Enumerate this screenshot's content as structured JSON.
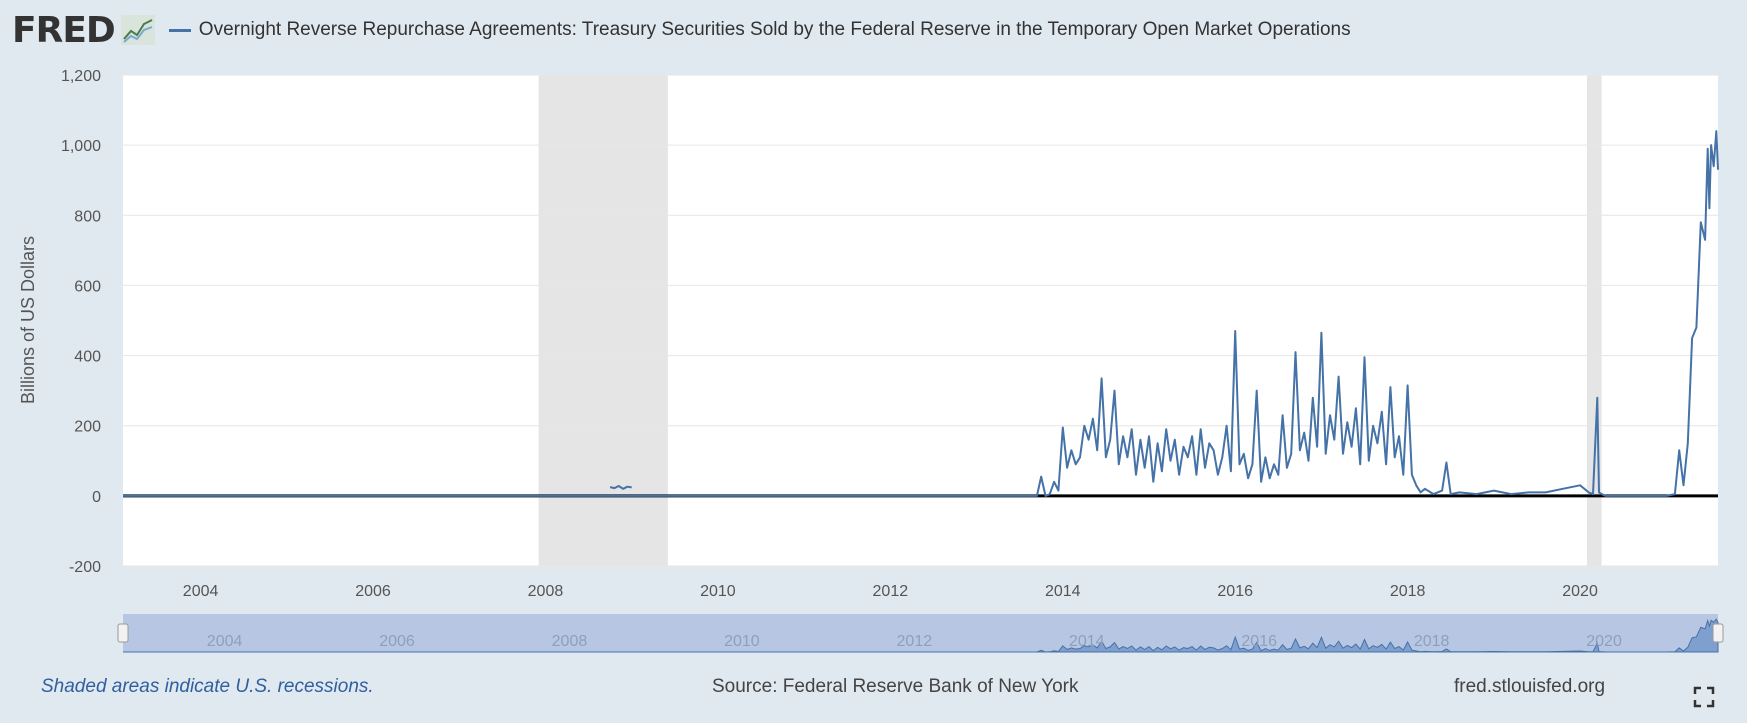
{
  "header": {
    "logo_text": "FRED",
    "series_title": "Overnight Reverse Repurchase Agreements: Treasury Securities Sold by the Federal Reserve in the Temporary Open Market Operations"
  },
  "footer": {
    "recession_note": "Shaded areas indicate U.S. recessions.",
    "source": "Source: Federal Reserve Bank of New York",
    "site": "fred.stlouisfed.org"
  },
  "colors": {
    "series": "#4572a7",
    "recession": "#e5e5e5",
    "background": "#e1e9f0",
    "plot": "#ffffff",
    "navigator_fill": "#b7c7e3"
  },
  "chart_data": {
    "type": "line",
    "ylabel": "Billions of US Dollars",
    "ylim": [
      -200,
      1200
    ],
    "yticks": [
      -200,
      0,
      200,
      400,
      600,
      800,
      1000,
      1200
    ],
    "ytick_labels": [
      "-200",
      "0",
      "200",
      "400",
      "600",
      "800",
      "1,000",
      "1,200"
    ],
    "xlim": [
      2003.1,
      2021.6
    ],
    "xticks": [
      2004,
      2006,
      2008,
      2010,
      2012,
      2014,
      2016,
      2018,
      2020
    ],
    "xtick_labels": [
      "2004",
      "2006",
      "2008",
      "2010",
      "2012",
      "2014",
      "2016",
      "2018",
      "2020"
    ],
    "grid": true,
    "recessions": [
      [
        2007.92,
        2009.42
      ],
      [
        2020.08,
        2020.25
      ]
    ],
    "series": [
      {
        "x": [
          2003.1,
          2013.7,
          2013.75,
          2013.8,
          2013.85,
          2013.9,
          2013.95,
          2014.0,
          2014.05,
          2014.1,
          2014.15,
          2014.2,
          2014.25,
          2014.3,
          2014.35,
          2014.4,
          2014.45,
          2014.5,
          2014.55,
          2014.6,
          2014.65,
          2014.7,
          2014.75,
          2014.8,
          2014.85,
          2014.9,
          2014.95,
          2015.0,
          2015.05,
          2015.1,
          2015.15,
          2015.2,
          2015.25,
          2015.3,
          2015.35,
          2015.4,
          2015.45,
          2015.5,
          2015.55,
          2015.6,
          2015.65,
          2015.7,
          2015.75,
          2015.8,
          2015.85,
          2015.9,
          2015.95,
          2016.0,
          2016.05,
          2016.1,
          2016.15,
          2016.2,
          2016.25,
          2016.3,
          2016.35,
          2016.4,
          2016.45,
          2016.5,
          2016.55,
          2016.6,
          2016.65,
          2016.7,
          2016.75,
          2016.8,
          2016.85,
          2016.9,
          2016.95,
          2017.0,
          2017.05,
          2017.1,
          2017.15,
          2017.2,
          2017.25,
          2017.3,
          2017.35,
          2017.4,
          2017.45,
          2017.5,
          2017.55,
          2017.6,
          2017.65,
          2017.7,
          2017.75,
          2017.8,
          2017.85,
          2017.9,
          2017.95,
          2018.0,
          2018.05,
          2018.1,
          2018.15,
          2018.2,
          2018.3,
          2018.4,
          2018.45,
          2018.5,
          2018.6,
          2018.8,
          2019.0,
          2019.2,
          2019.4,
          2019.6,
          2019.8,
          2020.0,
          2020.1,
          2020.15,
          2020.2,
          2020.22,
          2020.25,
          2020.3,
          2020.4,
          2020.6,
          2020.8,
          2021.0,
          2021.1,
          2021.15,
          2021.2,
          2021.25,
          2021.3,
          2021.35,
          2021.4,
          2021.45,
          2021.48,
          2021.5,
          2021.52,
          2021.55,
          2021.58,
          2021.6
        ],
        "values": [
          0,
          0,
          55,
          0,
          5,
          40,
          15,
          195,
          80,
          130,
          90,
          110,
          200,
          160,
          220,
          130,
          335,
          110,
          160,
          300,
          90,
          170,
          110,
          190,
          60,
          160,
          80,
          170,
          40,
          150,
          70,
          190,
          100,
          160,
          60,
          140,
          110,
          170,
          60,
          190,
          80,
          150,
          130,
          60,
          110,
          200,
          70,
          470,
          90,
          120,
          50,
          90,
          300,
          40,
          110,
          50,
          90,
          60,
          230,
          80,
          120,
          410,
          130,
          180,
          100,
          280,
          140,
          465,
          120,
          230,
          160,
          340,
          120,
          210,
          140,
          250,
          90,
          395,
          100,
          200,
          150,
          240,
          90,
          310,
          110,
          170,
          60,
          315,
          60,
          30,
          10,
          20,
          5,
          15,
          95,
          5,
          10,
          5,
          15,
          5,
          10,
          10,
          20,
          30,
          10,
          5,
          280,
          10,
          5,
          0,
          0,
          0,
          0,
          0,
          5,
          130,
          30,
          150,
          450,
          480,
          780,
          730,
          990,
          820,
          1000,
          940,
          1040,
          930
        ]
      },
      {
        "x": [
          2008.75,
          2008.8,
          2008.85,
          2008.9,
          2008.95,
          2009.0
        ],
        "values": [
          25,
          22,
          28,
          20,
          26,
          24
        ]
      }
    ],
    "navigator": {
      "labels": [
        "2004",
        "2006",
        "2008",
        "2010",
        "2012",
        "2014",
        "2016",
        "2018",
        "2020"
      ]
    }
  }
}
